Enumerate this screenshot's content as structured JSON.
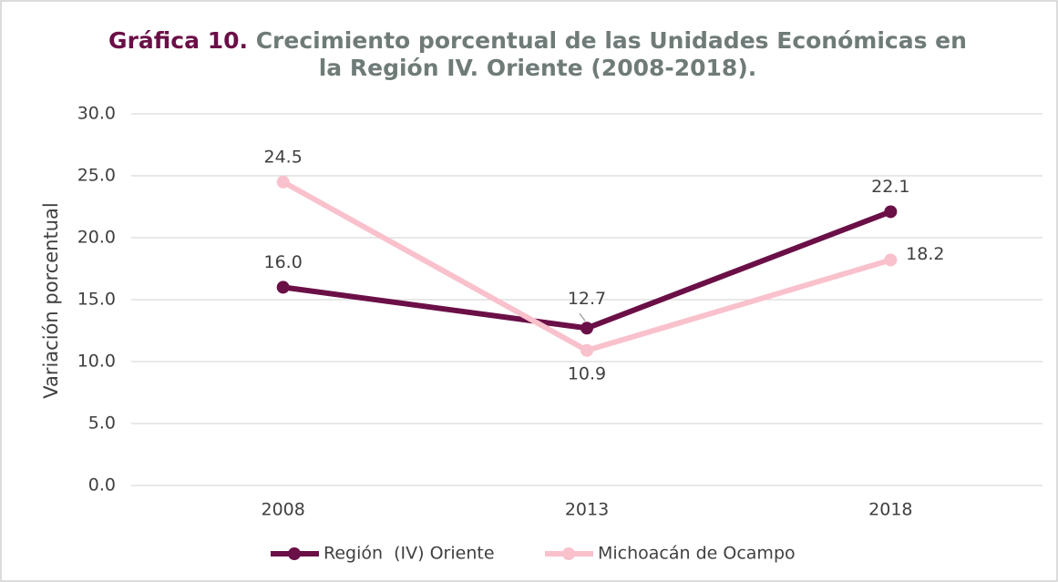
{
  "chart_data": {
    "type": "line",
    "title_label": "Gráfica 10.",
    "title": "Crecimiento porcentual de las Unidades Económicas en",
    "title_line2": "la Región IV. Oriente (2008-2018).",
    "y_label": "Variación porcentual",
    "categories": [
      "2008",
      "2013",
      "2018"
    ],
    "series": [
      {
        "name": "Región  (IV) Oriente",
        "color": "#6b0f47",
        "values": [
          16.0,
          12.7,
          22.1
        ],
        "value_labels": [
          "16.0",
          "12.7",
          "22.1"
        ]
      },
      {
        "name": "Michoacán de Ocampo",
        "color": "#f9c1cc",
        "values": [
          24.5,
          10.9,
          18.2
        ],
        "value_labels": [
          "24.5",
          "10.9",
          "18.2"
        ]
      }
    ],
    "ylim": [
      0,
      30
    ],
    "yticks": [
      {
        "value": 0,
        "label": "0.0"
      },
      {
        "value": 5,
        "label": "5.0"
      },
      {
        "value": 10,
        "label": "10.0"
      },
      {
        "value": 15,
        "label": "15.0"
      },
      {
        "value": 20,
        "label": "20.0"
      },
      {
        "value": 25,
        "label": "25.0"
      },
      {
        "value": 30,
        "label": "30.0"
      }
    ],
    "grid": true,
    "legend": "bottom"
  }
}
